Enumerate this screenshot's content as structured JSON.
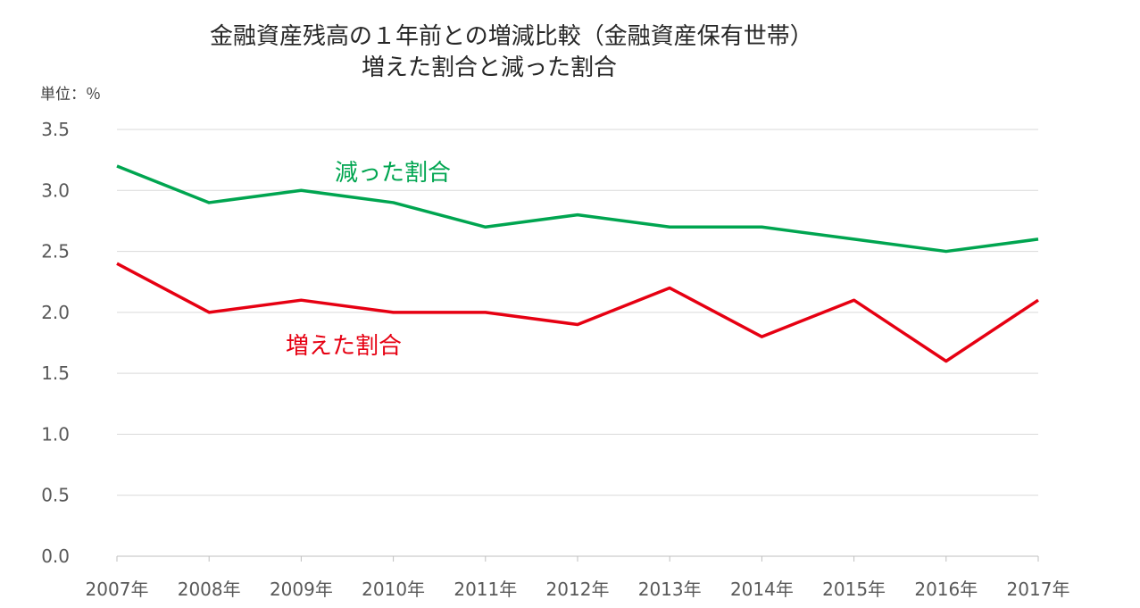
{
  "chart_data": {
    "type": "line",
    "title": "金融資産残高の１年前との増減比較（金融資産保有世帯）",
    "subtitle": "増えた割合と減った割合",
    "unit_label": "単位：％",
    "categories": [
      "2007年",
      "2008年",
      "2009年",
      "2010年",
      "2011年",
      "2012年",
      "2013年",
      "2014年",
      "2015年",
      "2016年",
      "2017年"
    ],
    "series": [
      {
        "name": "減った割合",
        "color": "#00a550",
        "values": [
          3.2,
          2.9,
          3.0,
          2.9,
          2.7,
          2.8,
          2.7,
          2.7,
          2.6,
          2.5,
          2.6
        ]
      },
      {
        "name": "増えた割合",
        "color": "#e60012",
        "values": [
          2.4,
          2.0,
          2.1,
          2.0,
          2.0,
          1.9,
          2.2,
          1.8,
          2.1,
          1.6,
          2.1
        ]
      }
    ],
    "y_ticks": [
      "0.0",
      "0.5",
      "1.0",
      "1.5",
      "2.0",
      "2.5",
      "3.0",
      "3.5"
    ],
    "ylim": [
      0,
      3.5
    ],
    "grid": true,
    "legend": "inline labels"
  }
}
